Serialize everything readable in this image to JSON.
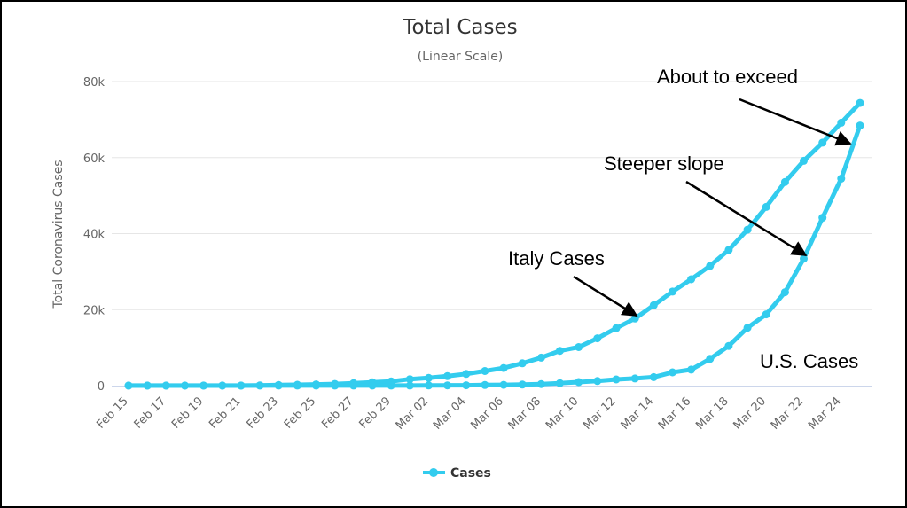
{
  "chart_data": {
    "type": "line",
    "title": "Total Cases",
    "subtitle": "(Linear Scale)",
    "ylabel": "Total Coronavirus Cases",
    "xlabel": "",
    "ylim": [
      0,
      80000
    ],
    "y_ticks": [
      {
        "value": 0,
        "label": "0"
      },
      {
        "value": 20000,
        "label": "20k"
      },
      {
        "value": 40000,
        "label": "40k"
      },
      {
        "value": 60000,
        "label": "60k"
      },
      {
        "value": 80000,
        "label": "80k"
      }
    ],
    "x_tick_labels": [
      "Feb 15",
      "Feb 17",
      "Feb 19",
      "Feb 21",
      "Feb 23",
      "Feb 25",
      "Feb 27",
      "Feb 29",
      "Mar 02",
      "Mar 04",
      "Mar 06",
      "Mar 08",
      "Mar 10",
      "Mar 12",
      "Mar 14",
      "Mar 16",
      "Mar 18",
      "Mar 20",
      "Mar 22",
      "Mar 24"
    ],
    "categories": [
      "Feb 15",
      "Feb 16",
      "Feb 17",
      "Feb 18",
      "Feb 19",
      "Feb 20",
      "Feb 21",
      "Feb 22",
      "Feb 23",
      "Feb 24",
      "Feb 25",
      "Feb 26",
      "Feb 27",
      "Feb 28",
      "Feb 29",
      "Mar 01",
      "Mar 02",
      "Mar 03",
      "Mar 04",
      "Mar 05",
      "Mar 06",
      "Mar 07",
      "Mar 08",
      "Mar 09",
      "Mar 10",
      "Mar 11",
      "Mar 12",
      "Mar 13",
      "Mar 14",
      "Mar 15",
      "Mar 16",
      "Mar 17",
      "Mar 18",
      "Mar 19",
      "Mar 20",
      "Mar 21",
      "Mar 22",
      "Mar 23",
      "Mar 24",
      "Mar 25"
    ],
    "series": [
      {
        "name": "Cases",
        "values": [
          3,
          3,
          3,
          3,
          3,
          3,
          3,
          79,
          152,
          229,
          322,
          453,
          655,
          888,
          1128,
          1694,
          2036,
          2502,
          3089,
          3858,
          4636,
          5883,
          7375,
          9172,
          10149,
          12462,
          15113,
          17660,
          21157,
          24747,
          27980,
          31506,
          35713,
          41035,
          47021,
          53578,
          59138,
          63927,
          69176,
          74386
        ]
      },
      {
        "name": "Cases",
        "values": [
          15,
          15,
          15,
          15,
          15,
          15,
          15,
          15,
          15,
          15,
          15,
          15,
          16,
          16,
          24,
          30,
          53,
          80,
          98,
          164,
          214,
          279,
          423,
          647,
          937,
          1215,
          1629,
          1896,
          2234,
          3487,
          4226,
          7038,
          10442,
          15219,
          18747,
          24583,
          33404,
          44183,
          54453,
          68440
        ]
      }
    ],
    "legend": {
      "label": "Cases",
      "position": "bottom"
    },
    "annotations": [
      {
        "text": "About to exceed"
      },
      {
        "text": "Steeper slope"
      },
      {
        "text": "Italy Cases"
      },
      {
        "text": "U.S. Cases"
      }
    ],
    "colors": {
      "series": "#33ccee",
      "grid": "#e6e6e6",
      "axis": "#ccd6eb",
      "arrow": "#000000"
    },
    "grid": true
  }
}
